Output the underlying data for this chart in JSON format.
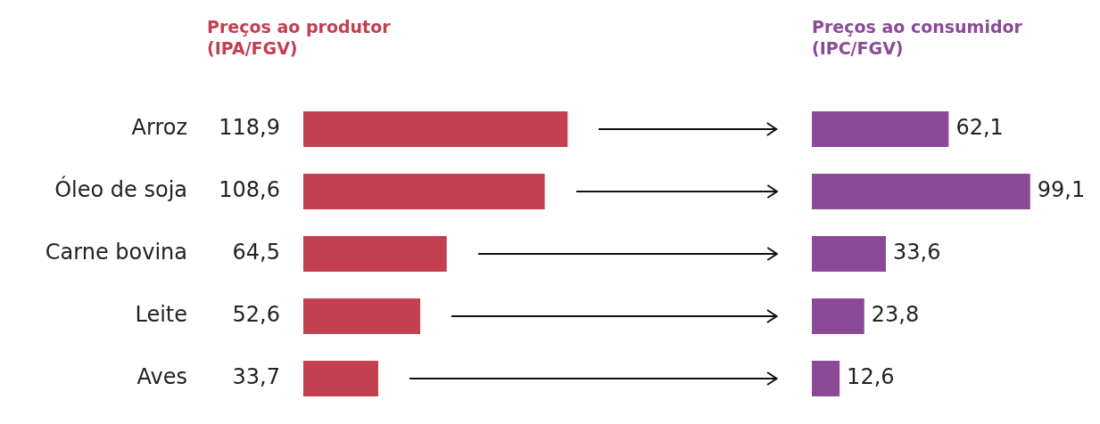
{
  "chart_data": [
    {
      "type": "bar",
      "orientation": "horizontal",
      "title": "Preços ao produtor\n(IPA/FGV)",
      "categories": [
        "Arroz",
        "Óleo de soja",
        "Carne bovina",
        "Leite",
        "Aves"
      ],
      "values": [
        118.9,
        108.6,
        64.5,
        52.6,
        33.7
      ],
      "value_labels": [
        "118,9",
        "108,6",
        "64,5",
        "52,6",
        "33,7"
      ],
      "color": "#c2404f",
      "tick_labels": "y"
    },
    {
      "type": "bar",
      "orientation": "horizontal",
      "title": "Preços ao consumidor\n(IPC/FGV)",
      "categories": [
        null,
        null,
        null,
        null,
        null
      ],
      "values": [
        62.1,
        99.1,
        33.6,
        23.8,
        12.6
      ],
      "value_labels": [
        "62,1",
        "99,1",
        "33,6",
        "23,8",
        "12,6"
      ],
      "color": "#8b4a98",
      "tick_labels": false
    }
  ]
}
